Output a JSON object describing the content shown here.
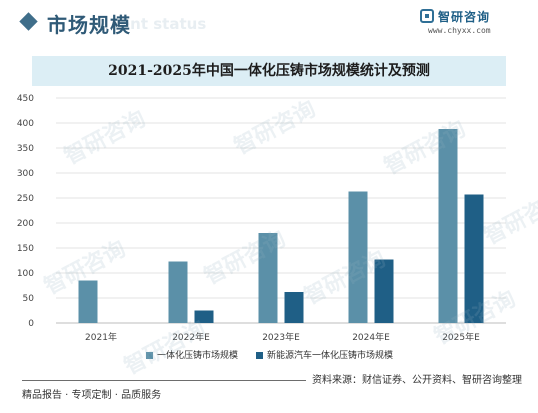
{
  "header": {
    "title": "市场规模",
    "ghost_text": "ent status"
  },
  "logo": {
    "name": "智研咨询",
    "url": "www.chyxx.com",
    "icon": "logo-mark-icon"
  },
  "watermark_text": "智研咨询",
  "chart_data": {
    "type": "bar",
    "title": "2021-2025年中国一体化压铸市场规模统计及预测",
    "categories": [
      "2021年",
      "2022年E",
      "2023年E",
      "2024年E",
      "2025年E"
    ],
    "series": [
      {
        "name": "一体化压铸市场规模",
        "color": "#5b90a8",
        "values": [
          85,
          123,
          180,
          263,
          388
        ]
      },
      {
        "name": "新能源汽车一体化压铸市场规模",
        "color": "#1f5f86",
        "values": [
          null,
          25,
          62,
          127,
          257
        ]
      }
    ],
    "ylim": [
      0,
      450
    ],
    "yticks": [
      0,
      50,
      100,
      150,
      200,
      250,
      300,
      350,
      400,
      450
    ],
    "grid": true,
    "legend": "bottom"
  },
  "footer": {
    "left": "精品报告 · 专项定制 · 品质服务",
    "right": "资料来源：财信证券、公开资料、智研咨询整理"
  }
}
